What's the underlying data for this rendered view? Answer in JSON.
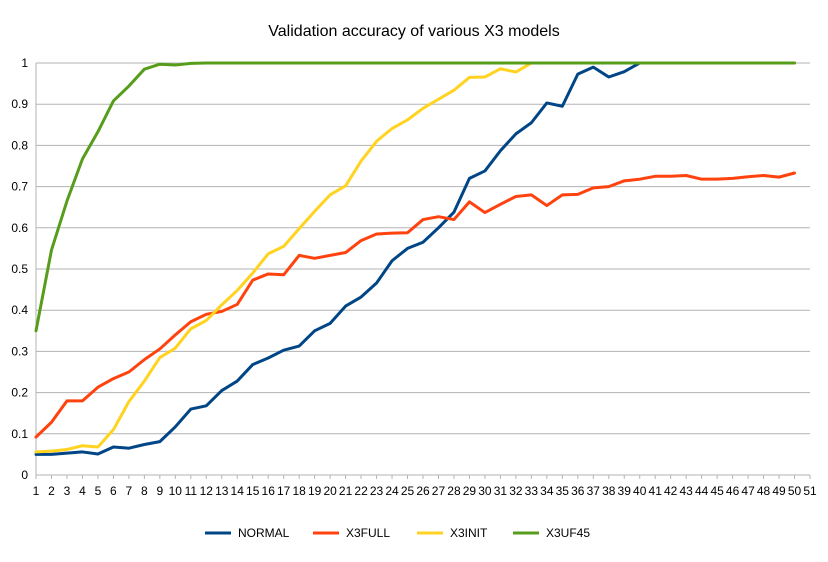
{
  "chart_data": {
    "type": "line",
    "title": "Validation accuracy of various X3 models",
    "xlabel": "",
    "ylabel": "",
    "ylim": [
      0,
      1
    ],
    "yticks": [
      "0",
      "0.1",
      "0.2",
      "0.3",
      "0.4",
      "0.5",
      "0.6",
      "0.7",
      "0.8",
      "0.9",
      "1"
    ],
    "x": [
      1,
      2,
      3,
      4,
      5,
      6,
      7,
      8,
      9,
      10,
      11,
      12,
      13,
      14,
      15,
      16,
      17,
      18,
      19,
      20,
      21,
      22,
      23,
      24,
      25,
      26,
      27,
      28,
      29,
      30,
      31,
      32,
      33,
      34,
      35,
      36,
      37,
      38,
      39,
      40,
      41,
      42,
      43,
      44,
      45,
      46,
      47,
      48,
      49,
      50
    ],
    "xticks": [
      "1",
      "2",
      "3",
      "4",
      "5",
      "6",
      "7",
      "8",
      "9",
      "10",
      "11",
      "12",
      "13",
      "14",
      "15",
      "16",
      "17",
      "18",
      "19",
      "20",
      "21",
      "22",
      "23",
      "24",
      "25",
      "26",
      "27",
      "28",
      "29",
      "30",
      "31",
      "32",
      "33",
      "34",
      "35",
      "36",
      "37",
      "38",
      "39",
      "40",
      "41",
      "42",
      "43",
      "44",
      "45",
      "46",
      "47",
      "48",
      "49",
      "50",
      "51"
    ],
    "grid": true,
    "legend_position": "bottom",
    "series": [
      {
        "name": "NORMAL",
        "color": "#004586",
        "values": [
          0.05,
          0.05,
          0.053,
          0.056,
          0.051,
          0.068,
          0.065,
          0.074,
          0.081,
          0.117,
          0.16,
          0.168,
          0.205,
          0.228,
          0.268,
          0.284,
          0.303,
          0.313,
          0.35,
          0.368,
          0.41,
          0.432,
          0.466,
          0.52,
          0.55,
          0.565,
          0.6,
          0.638,
          0.72,
          0.738,
          0.787,
          0.828,
          0.855,
          0.903,
          0.895,
          0.973,
          0.99,
          0.966,
          0.979,
          1,
          1,
          1,
          1,
          1,
          1,
          1,
          1,
          1,
          1,
          1
        ]
      },
      {
        "name": "X3FULL",
        "color": "#ff420e",
        "values": [
          0.092,
          0.128,
          0.18,
          0.18,
          0.213,
          0.234,
          0.25,
          0.28,
          0.306,
          0.34,
          0.372,
          0.39,
          0.397,
          0.414,
          0.473,
          0.488,
          0.486,
          0.533,
          0.526,
          0.533,
          0.54,
          0.569,
          0.585,
          0.587,
          0.588,
          0.62,
          0.627,
          0.62,
          0.663,
          0.637,
          0.657,
          0.676,
          0.68,
          0.654,
          0.68,
          0.681,
          0.697,
          0.7,
          0.714,
          0.718,
          0.725,
          0.725,
          0.727,
          0.718,
          0.718,
          0.72,
          0.724,
          0.727,
          0.723,
          0.733
        ]
      },
      {
        "name": "X3INIT",
        "color": "#ffd320",
        "values": [
          0.056,
          0.058,
          0.062,
          0.071,
          0.068,
          0.11,
          0.178,
          0.228,
          0.285,
          0.308,
          0.355,
          0.375,
          0.413,
          0.448,
          0.49,
          0.537,
          0.555,
          0.598,
          0.64,
          0.68,
          0.702,
          0.762,
          0.81,
          0.841,
          0.862,
          0.89,
          0.912,
          0.934,
          0.965,
          0.966,
          0.986,
          0.978,
          1,
          1,
          1,
          1,
          1,
          1,
          1,
          1,
          1,
          1,
          1,
          1,
          1,
          1,
          1,
          1,
          1,
          1
        ]
      },
      {
        "name": "X3UF45",
        "color": "#579d1c",
        "values": [
          0.35,
          0.546,
          0.665,
          0.767,
          0.833,
          0.908,
          0.944,
          0.985,
          0.997,
          0.995,
          0.999,
          1,
          1,
          1,
          1,
          1,
          1,
          1,
          1,
          1,
          1,
          1,
          1,
          1,
          1,
          1,
          1,
          1,
          1,
          1,
          1,
          1,
          1,
          1,
          1,
          1,
          1,
          1,
          1,
          1,
          1,
          1,
          1,
          1,
          1,
          1,
          1,
          1,
          1,
          1
        ]
      }
    ]
  }
}
